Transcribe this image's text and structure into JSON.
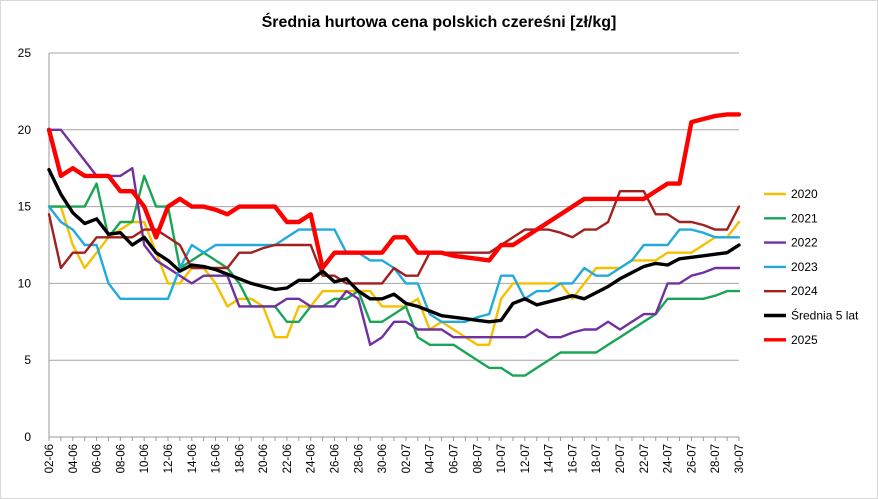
{
  "chart_data": {
    "type": "line",
    "title": "Średnia hurtowa cena polskich czereśni [zł/kg]",
    "xlabel": "",
    "ylabel": "",
    "ylim": [
      0,
      25
    ],
    "yticks": [
      "0",
      "5",
      "10",
      "15",
      "20",
      "25"
    ],
    "grid": "horizontal",
    "legend_position": "right",
    "x_tick_labels": [
      "02-06",
      "04-06",
      "06-06",
      "08-06",
      "10-06",
      "12-06",
      "14-06",
      "16-06",
      "18-06",
      "20-06",
      "22-06",
      "24-06",
      "26-06",
      "28-06",
      "30-06",
      "02-07",
      "04-07",
      "06-07",
      "08-07",
      "10-07",
      "12-07",
      "14-07",
      "16-07",
      "18-07",
      "20-07",
      "22-07",
      "24-07",
      "26-07",
      "28-07",
      "30-07"
    ],
    "x": [
      "02-06",
      "03-06",
      "04-06",
      "05-06",
      "06-06",
      "07-06",
      "08-06",
      "09-06",
      "10-06",
      "11-06",
      "12-06",
      "13-06",
      "14-06",
      "15-06",
      "16-06",
      "17-06",
      "18-06",
      "19-06",
      "20-06",
      "21-06",
      "22-06",
      "23-06",
      "24-06",
      "25-06",
      "26-06",
      "27-06",
      "28-06",
      "29-06",
      "30-06",
      "01-07",
      "02-07",
      "03-07",
      "04-07",
      "05-07",
      "06-07",
      "07-07",
      "08-07",
      "09-07",
      "10-07",
      "11-07",
      "12-07",
      "13-07",
      "14-07",
      "15-07",
      "16-07",
      "17-07",
      "18-07",
      "19-07",
      "20-07",
      "21-07",
      "22-07",
      "23-07",
      "24-07",
      "25-07",
      "26-07",
      "27-07",
      "28-07",
      "29-07",
      "30-07"
    ],
    "series": [
      {
        "name": "2020",
        "color": "#f5c000",
        "width": 2.4,
        "values": [
          15,
          15,
          12.5,
          11,
          12,
          13,
          13.5,
          14,
          14,
          12,
          10,
          10,
          11,
          11,
          10,
          8.5,
          9,
          9,
          8.5,
          6.5,
          6.5,
          8.5,
          8.5,
          9.5,
          9.5,
          9.5,
          9.5,
          9.5,
          8.5,
          8.5,
          8.5,
          9,
          7,
          7.5,
          7,
          6.5,
          6,
          6,
          9,
          10,
          10,
          10,
          10,
          10,
          9,
          10,
          11,
          11,
          11,
          11.5,
          11.5,
          11.5,
          12,
          12,
          12,
          12.5,
          13,
          13,
          14
        ]
      },
      {
        "name": "2021",
        "color": "#1aa556",
        "width": 2.4,
        "values": [
          15,
          15,
          15,
          15,
          16.5,
          13,
          14,
          14,
          17,
          15,
          15,
          11,
          11.5,
          12,
          11.5,
          11,
          10,
          8.5,
          8.5,
          8.5,
          7.5,
          7.5,
          8.5,
          8.5,
          9,
          9,
          9.5,
          7.5,
          7.5,
          8,
          8.5,
          6.5,
          6,
          6,
          6,
          5.5,
          5,
          4.5,
          4.5,
          4,
          4,
          4.5,
          5,
          5.5,
          5.5,
          5.5,
          5.5,
          6,
          6.5,
          7,
          7.5,
          8,
          9,
          9,
          9,
          9,
          9.2,
          9.5,
          9.5
        ]
      },
      {
        "name": "2022",
        "color": "#7030a0",
        "width": 2.4,
        "values": [
          20,
          20,
          19,
          18,
          17,
          17,
          17,
          17.5,
          12.5,
          11.5,
          11,
          10.5,
          10,
          10.5,
          10.5,
          10.5,
          8.5,
          8.5,
          8.5,
          8.5,
          9,
          9,
          8.5,
          8.5,
          8.5,
          9.5,
          9,
          6,
          6.5,
          7.5,
          7.5,
          7,
          7,
          7,
          6.5,
          6.5,
          6.5,
          6.5,
          6.5,
          6.5,
          6.5,
          7,
          6.5,
          6.5,
          6.8,
          7,
          7,
          7.5,
          7,
          7.5,
          8,
          8,
          10,
          10,
          10.5,
          10.7,
          11,
          11,
          11
        ]
      },
      {
        "name": "2023",
        "color": "#22aadd",
        "width": 2.4,
        "values": [
          15,
          14,
          13.5,
          12.5,
          12.5,
          10,
          9,
          9,
          9,
          9,
          9,
          11,
          12.5,
          12,
          12.5,
          12.5,
          12.5,
          12.5,
          12.5,
          12.5,
          13,
          13.5,
          13.5,
          13.5,
          13.5,
          12,
          12,
          11.5,
          11.5,
          11,
          10,
          10,
          8,
          7.5,
          7.5,
          7.5,
          7.8,
          8,
          10.5,
          10.5,
          9,
          9.5,
          9.5,
          10,
          10,
          11,
          10.5,
          10.5,
          11,
          11.5,
          12.5,
          12.5,
          12.5,
          13.5,
          13.5,
          13.3,
          13,
          13,
          13
        ]
      },
      {
        "name": "2024",
        "color": "#a31f1f",
        "width": 2.4,
        "values": [
          14.5,
          11,
          12,
          12,
          13,
          13,
          13,
          13,
          13.5,
          13.5,
          13,
          12.5,
          11,
          11,
          11,
          11,
          12,
          12,
          12.3,
          12.5,
          12.5,
          12.5,
          12.5,
          10.5,
          10.5,
          10,
          10,
          10,
          10,
          11,
          10.5,
          10.5,
          12,
          12,
          12,
          12,
          12,
          12,
          12.5,
          13,
          13.5,
          13.5,
          13.5,
          13.3,
          13,
          13.5,
          13.5,
          14,
          16,
          16,
          16,
          14.5,
          14.5,
          14,
          14,
          13.8,
          13.5,
          13.5,
          15
        ]
      },
      {
        "name": "Średnia 5 lat",
        "color": "#000000",
        "width": 3.4,
        "values": [
          17.4,
          15.8,
          14.6,
          13.9,
          14.2,
          13.2,
          13.3,
          12.5,
          13,
          12,
          11.5,
          10.8,
          11.2,
          11.1,
          10.9,
          10.6,
          10.3,
          10,
          9.8,
          9.6,
          9.7,
          10.2,
          10.2,
          10.8,
          10.1,
          10.3,
          9.5,
          9,
          9,
          9.3,
          8.7,
          8.5,
          8.2,
          7.9,
          7.8,
          7.7,
          7.6,
          7.5,
          7.6,
          8.7,
          9,
          8.6,
          8.8,
          9,
          9.2,
          9,
          9.4,
          9.8,
          10.3,
          10.7,
          11.1,
          11.3,
          11.2,
          11.6,
          11.7,
          11.8,
          11.9,
          12,
          12.5
        ]
      },
      {
        "name": "2025",
        "color": "#ff0000",
        "width": 4.4,
        "values": [
          20,
          17,
          17.5,
          17,
          17,
          17,
          16,
          16,
          15,
          13,
          15,
          15.5,
          15,
          15,
          14.8,
          14.5,
          15,
          15,
          15,
          15,
          14,
          14,
          14.5,
          11,
          12,
          12,
          12,
          12,
          12,
          13,
          13,
          12,
          12,
          12,
          11.8,
          11.7,
          11.6,
          11.5,
          12.5,
          12.5,
          13,
          13.5,
          14,
          14.5,
          15,
          15.5,
          15.5,
          15.5,
          15.5,
          15.5,
          15.5,
          16,
          16.5,
          16.5,
          20.5,
          20.7,
          20.9,
          21,
          21
        ]
      }
    ]
  }
}
